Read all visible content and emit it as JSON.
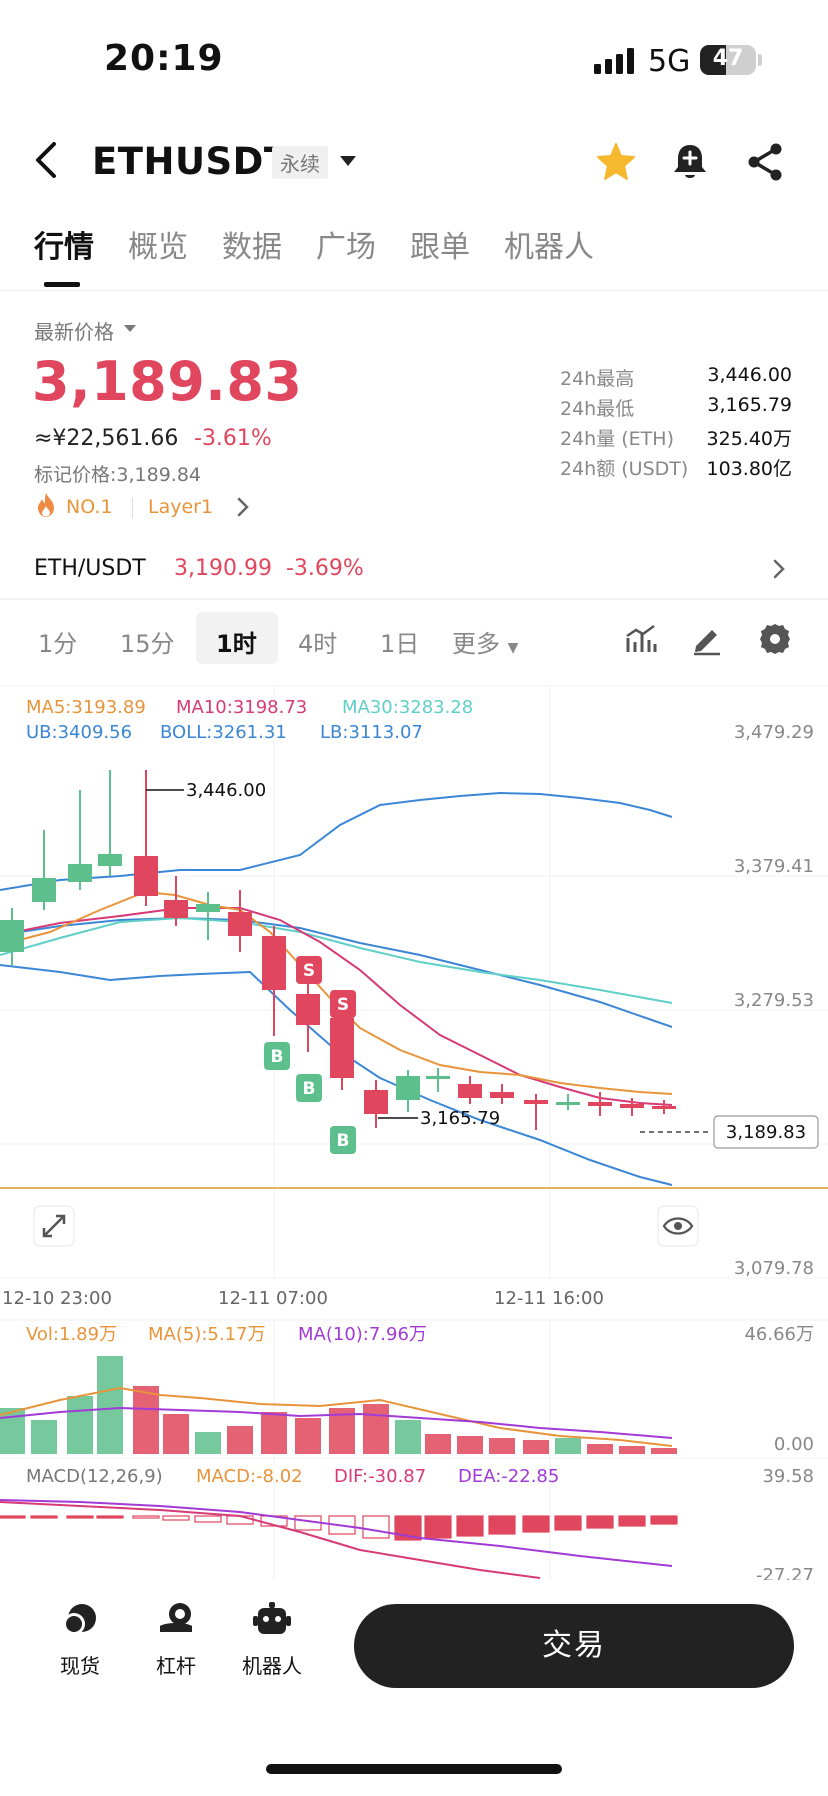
{
  "status": {
    "time": "20:19",
    "network": "5G",
    "battery": "47",
    "battery_level": 0.47
  },
  "header": {
    "title": "ETHUSDT",
    "tag": "永续"
  },
  "tabs": [
    "行情",
    "概览",
    "数据",
    "广场",
    "跟单",
    "机器人"
  ],
  "price": {
    "label": "最新价格",
    "last": "3,189.83",
    "cny": "≈¥22,561.66",
    "change_pct": "-3.61%",
    "mark_label": "标记价格:",
    "mark_value": "3,189.84",
    "rank": "NO.1",
    "sector": "Layer1"
  },
  "stats": [
    {
      "k": "24h最高",
      "v": "3,446.00"
    },
    {
      "k": "24h最低",
      "v": "3,165.79"
    },
    {
      "k": "24h量 (ETH)",
      "v": "325.40万"
    },
    {
      "k": "24h额 (USDT)",
      "v": "103.80亿"
    }
  ],
  "spot": {
    "pair": "ETH/USDT",
    "price": "3,190.99",
    "change": "-3.69%"
  },
  "timeframes": [
    "1分",
    "15分",
    "1时",
    "4时",
    "1日",
    "更多"
  ],
  "active_timeframe": "1时",
  "chart": {
    "ma": {
      "ma5": "MA5:3193.89",
      "ma10": "MA10:3198.73",
      "ma30": "MA30:3283.28"
    },
    "boll": {
      "ub": "UB:3409.56",
      "mid": "BOLL:3261.31",
      "lb": "LB:3113.07"
    },
    "y_ticks": [
      "3,479.29",
      "3,379.41",
      "3,279.53",
      "3,079.78"
    ],
    "current": "3,189.83",
    "high_mark": "3,446.00",
    "low_mark": "3,165.79",
    "x_ticks": [
      "12-10 23:00",
      "12-11 07:00",
      "12-11 16:00"
    ],
    "trade_marks": [
      "S",
      "S",
      "B",
      "B",
      "B"
    ],
    "vol": {
      "vol": "Vol:1.89万",
      "ma5": "MA(5):5.17万",
      "ma10": "MA(10):7.96万",
      "top": "46.66万",
      "bottom": "0.00"
    },
    "macd": {
      "label": "MACD(12,26,9)",
      "macd": "MACD:-8.02",
      "dif": "DIF:-30.87",
      "dea": "DEA:-22.85",
      "top": "39.58",
      "bottom": "-27.27"
    },
    "colors": {
      "up": "#5dbf8c",
      "down": "#e0465d",
      "ma5": "#e8943a",
      "ma10": "#d63a77",
      "ma30": "#5fcfc7",
      "boll": "#3b87d6"
    }
  },
  "bottom": {
    "spot": "现货",
    "leverage": "杠杆",
    "bot": "机器人",
    "trade": "交易"
  }
}
